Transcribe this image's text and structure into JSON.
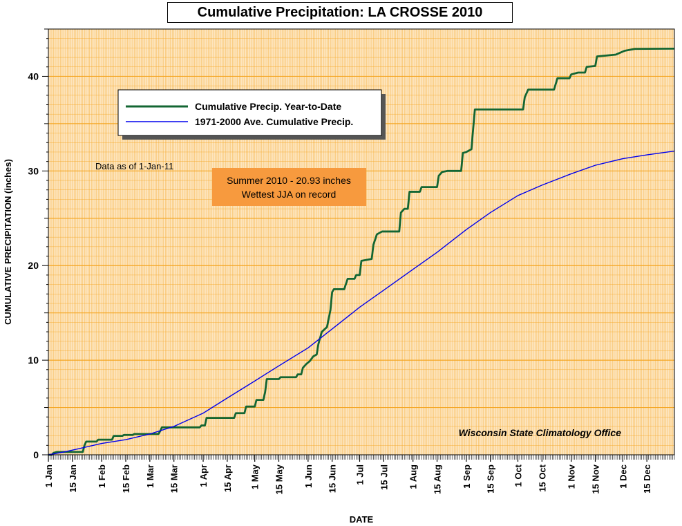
{
  "chart_data": {
    "type": "line",
    "title": "Cumulative Precipitation: LA CROSSE 2010",
    "xlabel": "DATE",
    "ylabel": "CUMULATIVE PRECIPITATION (inches)",
    "ylim": [
      0,
      45
    ],
    "xlim": [
      1,
      365
    ],
    "y_ticks": [
      0,
      10,
      20,
      30,
      40
    ],
    "x_tick_labels": [
      {
        "day": 1,
        "label": "1 Jan"
      },
      {
        "day": 15,
        "label": "15 Jan"
      },
      {
        "day": 32,
        "label": "1 Feb"
      },
      {
        "day": 46,
        "label": "15 Feb"
      },
      {
        "day": 60,
        "label": "1 Mar"
      },
      {
        "day": 74,
        "label": "15 Mar"
      },
      {
        "day": 91,
        "label": "1 Apr"
      },
      {
        "day": 105,
        "label": "15 Apr"
      },
      {
        "day": 121,
        "label": "1 May"
      },
      {
        "day": 135,
        "label": "15 May"
      },
      {
        "day": 152,
        "label": "1 Jun"
      },
      {
        "day": 166,
        "label": "15 Jun"
      },
      {
        "day": 182,
        "label": "1 Jul"
      },
      {
        "day": 196,
        "label": "15 Jul"
      },
      {
        "day": 213,
        "label": "1 Aug"
      },
      {
        "day": 227,
        "label": "15 Aug"
      },
      {
        "day": 244,
        "label": "1 Sep"
      },
      {
        "day": 258,
        "label": "15 Sep"
      },
      {
        "day": 274,
        "label": "1 Oct"
      },
      {
        "day": 288,
        "label": "15 Oct"
      },
      {
        "day": 305,
        "label": "1 Nov"
      },
      {
        "day": 319,
        "label": "15 Nov"
      },
      {
        "day": 335,
        "label": "1 Dec"
      },
      {
        "day": 349,
        "label": "15 Dec"
      }
    ],
    "grid": true,
    "legend_position": "top-left",
    "annotations": {
      "data_as_of": "Data as of 1-Jan-11",
      "summer_line1": "Summer 2010 - 20.93 inches",
      "summer_line2": "Wettest JJA on record",
      "credit": "Wisconsin State Climatology Office"
    },
    "colors": {
      "background": "#fde5be",
      "grid": "#f5a623",
      "ytd": "#136633",
      "normal": "#0000ee",
      "callout": "#f79a3e"
    },
    "series": [
      {
        "name": "Cumulative Precip. Year-to-Date",
        "stepped": true,
        "points": [
          [
            1,
            0
          ],
          [
            3,
            0
          ],
          [
            4,
            0.2
          ],
          [
            6,
            0.3
          ],
          [
            21,
            0.3
          ],
          [
            22,
            1.0
          ],
          [
            23,
            1.4
          ],
          [
            29,
            1.4
          ],
          [
            30,
            1.6
          ],
          [
            38,
            1.6
          ],
          [
            39,
            2.0
          ],
          [
            44,
            2.0
          ],
          [
            45,
            2.1
          ],
          [
            50,
            2.1
          ],
          [
            51,
            2.2
          ],
          [
            65,
            2.2
          ],
          [
            66,
            2.5
          ],
          [
            67,
            2.9
          ],
          [
            89,
            2.9
          ],
          [
            90,
            3.1
          ],
          [
            92,
            3.1
          ],
          [
            93,
            3.9
          ],
          [
            109,
            3.9
          ],
          [
            110,
            4.4
          ],
          [
            115,
            4.4
          ],
          [
            116,
            5.1
          ],
          [
            121,
            5.1
          ],
          [
            122,
            5.8
          ],
          [
            126,
            5.8
          ],
          [
            127,
            6.6
          ],
          [
            128,
            8.0
          ],
          [
            135,
            8.0
          ],
          [
            136,
            8.2
          ],
          [
            145,
            8.2
          ],
          [
            146,
            8.5
          ],
          [
            148,
            8.5
          ],
          [
            149,
            9.2
          ],
          [
            151,
            9.6
          ],
          [
            153,
            9.9
          ],
          [
            155,
            10.4
          ],
          [
            157,
            10.6
          ],
          [
            158,
            11.7
          ],
          [
            160,
            13.0
          ],
          [
            163,
            13.5
          ],
          [
            165,
            15.3
          ],
          [
            166,
            17.2
          ],
          [
            167,
            17.5
          ],
          [
            173,
            17.5
          ],
          [
            175,
            18.6
          ],
          [
            179,
            18.6
          ],
          [
            180,
            19.0
          ],
          [
            182,
            19.0
          ],
          [
            183,
            20.5
          ],
          [
            186,
            20.6
          ],
          [
            189,
            20.7
          ],
          [
            190,
            22.2
          ],
          [
            192,
            23.3
          ],
          [
            195,
            23.6
          ],
          [
            205,
            23.6
          ],
          [
            206,
            25.6
          ],
          [
            208,
            26.0
          ],
          [
            210,
            26.0
          ],
          [
            211,
            27.8
          ],
          [
            217,
            27.8
          ],
          [
            218,
            28.3
          ],
          [
            227,
            28.3
          ],
          [
            228,
            29.5
          ],
          [
            230,
            29.9
          ],
          [
            233,
            30.0
          ],
          [
            241,
            30.0
          ],
          [
            242,
            31.9
          ],
          [
            244,
            32.0
          ],
          [
            247,
            32.3
          ],
          [
            248,
            34.5
          ],
          [
            249,
            36.5
          ],
          [
            277,
            36.5
          ],
          [
            278,
            37.8
          ],
          [
            280,
            38.6
          ],
          [
            295,
            38.6
          ],
          [
            297,
            39.8
          ],
          [
            304,
            39.8
          ],
          [
            305,
            40.2
          ],
          [
            309,
            40.4
          ],
          [
            313,
            40.4
          ],
          [
            314,
            41.0
          ],
          [
            319,
            41.1
          ],
          [
            320,
            42.1
          ],
          [
            331,
            42.3
          ],
          [
            336,
            42.7
          ],
          [
            339,
            42.8
          ],
          [
            342,
            42.9
          ],
          [
            365,
            42.93
          ]
        ]
      },
      {
        "name": "1971-2000 Ave. Cumulative Precip.",
        "stepped": false,
        "points": [
          [
            1,
            0
          ],
          [
            10,
            0.3
          ],
          [
            20,
            0.7
          ],
          [
            32,
            1.2
          ],
          [
            46,
            1.6
          ],
          [
            60,
            2.2
          ],
          [
            74,
            3.0
          ],
          [
            91,
            4.4
          ],
          [
            105,
            6.0
          ],
          [
            121,
            7.8
          ],
          [
            135,
            9.4
          ],
          [
            152,
            11.3
          ],
          [
            166,
            13.3
          ],
          [
            182,
            15.6
          ],
          [
            196,
            17.4
          ],
          [
            213,
            19.6
          ],
          [
            227,
            21.4
          ],
          [
            244,
            23.8
          ],
          [
            258,
            25.6
          ],
          [
            274,
            27.4
          ],
          [
            288,
            28.5
          ],
          [
            305,
            29.7
          ],
          [
            319,
            30.6
          ],
          [
            335,
            31.3
          ],
          [
            349,
            31.7
          ],
          [
            365,
            32.1
          ]
        ]
      }
    ]
  }
}
